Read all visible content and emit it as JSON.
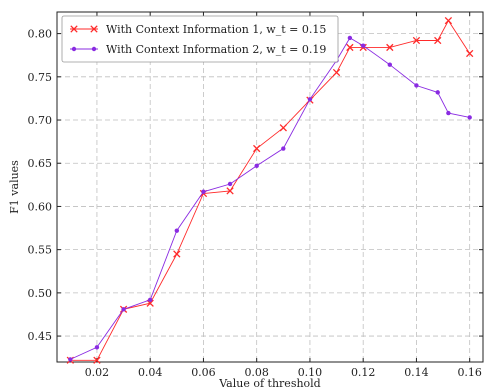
{
  "chart_data": {
    "type": "line",
    "title": "",
    "xlabel": "Value of threshold",
    "ylabel": "F1 values",
    "xlim": [
      0.005,
      0.165
    ],
    "ylim": [
      0.42,
      0.825
    ],
    "x_ticks": [
      "0.02",
      "0.04",
      "0.06",
      "0.08",
      "0.10",
      "0.12",
      "0.14",
      "0.16"
    ],
    "y_ticks": [
      "0.45",
      "0.50",
      "0.55",
      "0.60",
      "0.65",
      "0.70",
      "0.75",
      "0.80"
    ],
    "grid": true,
    "legend_position": "top-left",
    "series": [
      {
        "name": "With Context Information 1, w_t = 0.15",
        "color": "#ff2a2a",
        "marker": "x",
        "x": [
          0.01,
          0.02,
          0.03,
          0.04,
          0.05,
          0.06,
          0.07,
          0.08,
          0.09,
          0.1,
          0.11,
          0.115,
          0.12,
          0.13,
          0.14,
          0.148,
          0.152,
          0.16
        ],
        "y": [
          0.422,
          0.422,
          0.481,
          0.488,
          0.545,
          0.615,
          0.618,
          0.667,
          0.691,
          0.723,
          0.755,
          0.784,
          0.784,
          0.784,
          0.792,
          0.792,
          0.815,
          0.777
        ]
      },
      {
        "name": "With Context Information 2, w_t = 0.19",
        "color": "#8a2be2",
        "marker": "dot",
        "x": [
          0.01,
          0.02,
          0.03,
          0.04,
          0.05,
          0.06,
          0.07,
          0.08,
          0.09,
          0.1,
          0.11,
          0.115,
          0.12,
          0.13,
          0.14,
          0.148,
          0.152,
          0.16
        ],
        "y": [
          0.423,
          0.437,
          0.481,
          0.492,
          0.572,
          0.617,
          0.626,
          0.647,
          0.667,
          0.724,
          0.769,
          0.795,
          0.786,
          0.764,
          0.74,
          0.732,
          0.708,
          0.703
        ]
      }
    ]
  }
}
